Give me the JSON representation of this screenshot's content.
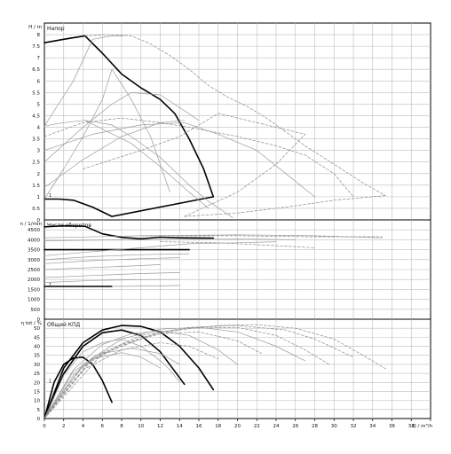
{
  "chart_data": [
    {
      "type": "line",
      "title": "Напор",
      "ylabel": "H / m",
      "ylim": [
        0,
        8.5
      ],
      "yticks": [
        0,
        0.5,
        1,
        1.5,
        2,
        2.5,
        3,
        3.5,
        4,
        4.5,
        5,
        5.5,
        6,
        6.5,
        7,
        7.5,
        8
      ],
      "ytick_labels": [
        "0",
        "0.5",
        "1",
        "1.5",
        "2",
        "2.5",
        "3",
        "3.5",
        "4",
        "4.5",
        "5",
        "5.5",
        "6",
        "6.5",
        "7",
        "7.5",
        "8"
      ],
      "xlim": [
        0,
        40
      ],
      "grid": true,
      "curve_labels": [
        "1"
      ],
      "series": [
        {
          "style": "bold",
          "x": [
            0,
            2,
            4.2,
            6,
            8,
            10,
            12,
            13.5,
            15,
            16.5,
            17.5,
            7,
            5,
            3,
            1.5,
            0
          ],
          "y": [
            7.65,
            7.8,
            7.95,
            7.2,
            6.3,
            5.7,
            5.2,
            4.6,
            3.5,
            2.2,
            1.0,
            0.15,
            0.55,
            0.85,
            0.9,
            0.9
          ]
        },
        {
          "style": "thin",
          "x": [
            0,
            2,
            4.2,
            7,
            9,
            12,
            15,
            17,
            19.5
          ],
          "y": [
            4.05,
            4.2,
            4.3,
            4.1,
            3.6,
            2.7,
            1.5,
            0.8,
            0.1
          ]
        },
        {
          "style": "thin",
          "x": [
            4.2,
            9,
            12,
            15,
            17
          ],
          "y": [
            4.3,
            3.3,
            2.3,
            1.2,
            0.5
          ]
        },
        {
          "style": "thin",
          "x": [
            0,
            2,
            4,
            6,
            7,
            9,
            11,
            13
          ],
          "y": [
            0.9,
            2.2,
            3.6,
            5.2,
            6.5,
            5.2,
            3.6,
            1.2
          ]
        },
        {
          "style": "thin",
          "x": [
            0,
            3,
            5,
            7,
            8.2
          ],
          "y": [
            4.05,
            6.0,
            7.8,
            7.95,
            7.95
          ]
        },
        {
          "style": "thin",
          "x": [
            0,
            4,
            7,
            9,
            12,
            16
          ],
          "y": [
            2.5,
            4.0,
            5.0,
            5.5,
            5.4,
            4.3
          ]
        },
        {
          "style": "thin",
          "x": [
            0,
            4,
            8,
            12,
            14.5
          ],
          "y": [
            1.4,
            2.6,
            3.6,
            4.2,
            4.3
          ]
        },
        {
          "style": "thin",
          "x": [
            0,
            5,
            10,
            14.5,
            18,
            22,
            25,
            28
          ],
          "y": [
            3.0,
            3.7,
            4.1,
            4.2,
            3.7,
            3.0,
            2.0,
            1.0
          ]
        },
        {
          "style": "dashed",
          "x": [
            4.2,
            7,
            9,
            11,
            13,
            15,
            17,
            19,
            21,
            23,
            25,
            27,
            30,
            33,
            35.3
          ],
          "y": [
            7.95,
            8.0,
            7.95,
            7.6,
            7.1,
            6.5,
            5.8,
            5.3,
            4.9,
            4.4,
            3.8,
            3.2,
            2.4,
            1.6,
            1.05
          ]
        },
        {
          "style": "dashed",
          "x": [
            35.3,
            30,
            25,
            20,
            14.5
          ],
          "y": [
            1.05,
            0.85,
            0.55,
            0.3,
            0.15
          ]
        },
        {
          "style": "dashed",
          "x": [
            0,
            4,
            8,
            12,
            15,
            20,
            24,
            27,
            30,
            32
          ],
          "y": [
            3.6,
            4.2,
            4.4,
            4.2,
            4.0,
            3.6,
            3.2,
            2.8,
            2.0,
            1.0
          ]
        },
        {
          "style": "dashed",
          "x": [
            4,
            10,
            14,
            18,
            24,
            27
          ],
          "y": [
            2.2,
            3.0,
            3.6,
            4.6,
            4.0,
            3.7
          ]
        },
        {
          "style": "dashed",
          "x": [
            14.5,
            20,
            24,
            27
          ],
          "y": [
            0.15,
            1.2,
            2.4,
            3.7
          ]
        }
      ]
    },
    {
      "type": "line",
      "title": "Число оборотов",
      "ylabel": "n / 1/min",
      "ylim": [
        0,
        5000
      ],
      "yticks": [
        0,
        500,
        1000,
        1500,
        2000,
        2500,
        3000,
        3500,
        4000,
        4500
      ],
      "ytick_labels": [
        "0",
        "500",
        "1000",
        "1500",
        "2000",
        "2500",
        "3000",
        "3500",
        "4000",
        "4500"
      ],
      "xlim": [
        0,
        40
      ],
      "grid": true,
      "curve_labels": [
        "1"
      ],
      "series": [
        {
          "style": "bold",
          "x": [
            0,
            2,
            4.2,
            6,
            8,
            10,
            12,
            14,
            17.5
          ],
          "y": [
            4650,
            4700,
            4680,
            4300,
            4120,
            4050,
            4130,
            4100,
            4080
          ]
        },
        {
          "style": "bold",
          "x": [
            0,
            7
          ],
          "y": [
            1650,
            1650
          ]
        },
        {
          "style": "bold",
          "x": [
            0,
            15
          ],
          "y": [
            3500,
            3500
          ]
        },
        {
          "style": "thin",
          "x": [
            0,
            10,
            20,
            28,
            35
          ],
          "y": [
            4100,
            4200,
            4250,
            4200,
            4100
          ]
        },
        {
          "style": "thin",
          "x": [
            0,
            10,
            20,
            26
          ],
          "y": [
            3950,
            4000,
            4050,
            4000
          ]
        },
        {
          "style": "thin",
          "x": [
            0,
            5,
            10,
            15,
            20,
            24
          ],
          "y": [
            3200,
            3400,
            3600,
            3800,
            3850,
            3900
          ]
        },
        {
          "style": "thin",
          "x": [
            0,
            5,
            10,
            15
          ],
          "y": [
            3000,
            3150,
            3250,
            3300
          ]
        },
        {
          "style": "thin",
          "x": [
            0,
            5,
            10,
            14
          ],
          "y": [
            2800,
            2950,
            3050,
            3100
          ]
        },
        {
          "style": "thin",
          "x": [
            0,
            5,
            10,
            12
          ],
          "y": [
            2500,
            2600,
            2700,
            2750
          ]
        },
        {
          "style": "thin",
          "x": [
            0,
            5,
            10,
            14
          ],
          "y": [
            2100,
            2200,
            2300,
            2350
          ]
        },
        {
          "style": "thin",
          "x": [
            0,
            5,
            10,
            14
          ],
          "y": [
            1850,
            1950,
            1990,
            2000
          ]
        },
        {
          "style": "thin",
          "x": [
            7,
            12,
            14
          ],
          "y": [
            1650,
            1680,
            1700
          ]
        },
        {
          "style": "dashed",
          "x": [
            10,
            20,
            27,
            35
          ],
          "y": [
            4200,
            4200,
            4150,
            4150
          ]
        },
        {
          "style": "dashed",
          "x": [
            12,
            18,
            24,
            28
          ],
          "y": [
            3900,
            3850,
            3700,
            3600
          ]
        }
      ]
    },
    {
      "type": "line",
      "title": "Общий КПД",
      "ylabel": "η tot / %",
      "ylim": [
        0,
        55
      ],
      "yticks": [
        0,
        5,
        10,
        15,
        20,
        25,
        30,
        35,
        40,
        45,
        50
      ],
      "ytick_labels": [
        "0",
        "5",
        "10",
        "15",
        "20",
        "25",
        "30",
        "35",
        "40",
        "45",
        "50"
      ],
      "xlabel": "Q / m³/h",
      "xlim": [
        0,
        40
      ],
      "xticks": [
        0,
        2,
        4,
        6,
        8,
        10,
        12,
        14,
        16,
        18,
        20,
        22,
        24,
        26,
        28,
        30,
        32,
        34,
        36,
        38,
        40
      ],
      "xtick_labels": [
        "0",
        "2",
        "4",
        "6",
        "8",
        "10",
        "12",
        "14",
        "16",
        "18",
        "20",
        "22",
        "24",
        "26",
        "28",
        "30",
        "32",
        "34",
        "36",
        "38",
        "40"
      ],
      "grid": true,
      "curve_labels": [
        "1"
      ],
      "series": [
        {
          "style": "bold",
          "x": [
            0,
            2,
            4,
            6,
            8,
            10,
            12,
            14,
            16,
            17.5
          ],
          "y": [
            0,
            28,
            42,
            49,
            51.5,
            51,
            48,
            40,
            28,
            16
          ]
        },
        {
          "style": "bold",
          "x": [
            0,
            1,
            2,
            3,
            4,
            5,
            6,
            7
          ],
          "y": [
            0,
            20,
            30,
            33.5,
            34,
            30,
            21,
            9
          ]
        },
        {
          "style": "bold",
          "x": [
            0,
            2,
            4,
            6,
            8,
            10,
            12,
            14.5
          ],
          "y": [
            0,
            25,
            40,
            47.5,
            49,
            46,
            37,
            19
          ]
        },
        {
          "style": "thin",
          "x": [
            0,
            2,
            4,
            6,
            8,
            10,
            12,
            13,
            14
          ],
          "y": [
            0,
            24,
            37,
            42,
            44,
            40,
            32,
            27,
            20
          ]
        },
        {
          "style": "thin",
          "x": [
            0,
            3,
            6,
            9,
            12,
            15,
            18,
            20
          ],
          "y": [
            0,
            27,
            41,
            47,
            48.5,
            46,
            38,
            30
          ]
        },
        {
          "style": "thin",
          "x": [
            0,
            4,
            8,
            12,
            16,
            20,
            24,
            27
          ],
          "y": [
            0,
            30,
            44,
            49.5,
            50.5,
            48,
            40,
            32
          ]
        },
        {
          "style": "thin",
          "x": [
            0,
            3,
            6,
            9,
            12,
            14
          ],
          "y": [
            0,
            26,
            36,
            39,
            36,
            30
          ]
        },
        {
          "style": "thin",
          "x": [
            0,
            3,
            5,
            8,
            10,
            12
          ],
          "y": [
            0,
            24,
            33,
            36.5,
            34,
            28
          ]
        },
        {
          "style": "dashed",
          "x": [
            0,
            5,
            10,
            15,
            20,
            25,
            28,
            32
          ],
          "y": [
            0,
            34,
            46,
            50.5,
            51.5,
            49,
            44,
            34
          ]
        },
        {
          "style": "dashed",
          "x": [
            0,
            6,
            12,
            18,
            22,
            26,
            30,
            33,
            35.5
          ],
          "y": [
            0,
            36,
            48,
            51.5,
            52,
            50,
            44,
            35,
            27
          ]
        },
        {
          "style": "dashed",
          "x": [
            0,
            5,
            10,
            15,
            20,
            24,
            27,
            29.5
          ],
          "y": [
            0,
            33,
            45,
            50,
            50.5,
            46,
            38,
            30
          ]
        },
        {
          "style": "dashed",
          "x": [
            0,
            4,
            8,
            12,
            16,
            20,
            22.5
          ],
          "y": [
            0,
            29,
            41,
            47,
            48,
            43,
            36
          ]
        },
        {
          "style": "dashed",
          "x": [
            0,
            4,
            8,
            12,
            15,
            18
          ],
          "y": [
            0,
            27,
            38,
            42,
            40,
            33
          ]
        }
      ]
    }
  ]
}
